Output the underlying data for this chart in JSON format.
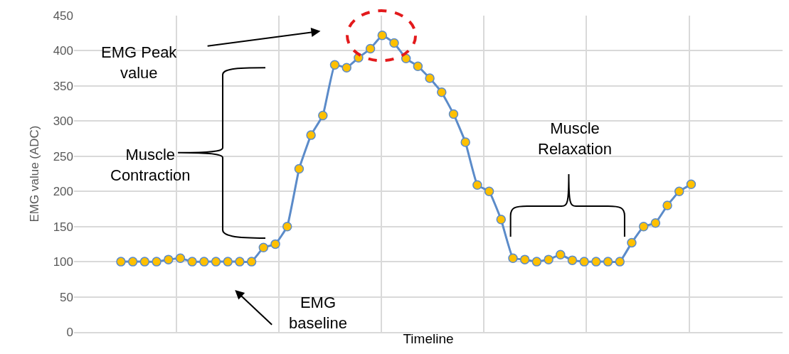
{
  "chart_data": {
    "type": "line",
    "xlabel": "Timeline",
    "ylabel": "EMG value (ADC)",
    "categories": [
      null,
      null,
      null,
      null,
      null,
      null,
      null,
      null,
      null,
      null,
      null,
      null,
      null,
      null,
      null,
      null,
      null,
      null,
      null,
      null,
      null,
      null,
      null,
      null,
      null,
      null,
      null,
      null,
      null,
      null,
      null,
      null,
      null,
      null,
      null,
      null,
      null,
      null,
      null,
      null,
      null,
      null,
      null,
      null,
      null,
      null,
      null,
      null,
      null
    ],
    "series": [
      {
        "color": "#5b8bc9",
        "values": [
          100,
          100,
          100,
          100,
          103,
          105,
          100,
          100,
          100,
          100,
          100,
          100,
          120,
          125,
          150,
          232,
          280,
          308,
          380,
          376,
          390,
          403,
          422,
          411,
          389,
          378,
          361,
          341,
          310,
          270,
          209,
          200,
          160,
          105,
          103,
          100,
          103,
          110,
          102,
          100,
          100,
          100,
          100,
          127,
          150,
          155,
          180,
          200,
          210
        ]
      }
    ],
    "ylim": [
      0,
      450
    ],
    "yticks": [
      0,
      50,
      100,
      150,
      200,
      250,
      300,
      350,
      400,
      450
    ],
    "grid": true,
    "marker": "circle",
    "annotations": [
      "EMG Peak value",
      "Muscle Contraction",
      "Muscle Relaxation",
      "EMG baseline"
    ]
  }
}
